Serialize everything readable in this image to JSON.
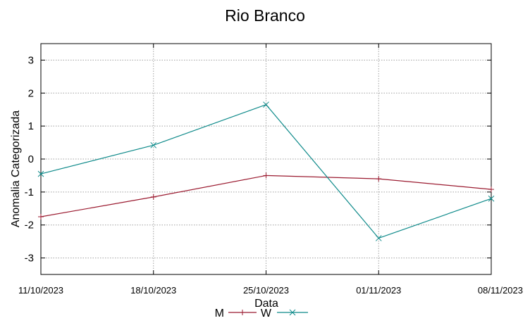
{
  "chart_data": {
    "type": "line",
    "title": "Rio Branco",
    "xlabel": "Data",
    "ylabel": "Anomalia Categorizada",
    "x": [
      "11/10/2023",
      "18/10/2023",
      "25/10/2023",
      "01/11/2023",
      "08/11/2023"
    ],
    "ylim": [
      -3.5,
      3.5
    ],
    "yticks": [
      -3,
      -2,
      -1,
      0,
      1,
      2,
      3
    ],
    "grid": true,
    "legend_position": "bottom",
    "series": [
      {
        "name": "M",
        "color": "#9b1b30",
        "marker": "plus",
        "values": [
          -1.75,
          -1.15,
          -0.5,
          -0.6,
          -0.92
        ]
      },
      {
        "name": "W",
        "color": "#0e8a8a",
        "marker": "cross",
        "values": [
          -0.45,
          0.42,
          1.65,
          -2.4,
          -1.2
        ]
      }
    ]
  }
}
